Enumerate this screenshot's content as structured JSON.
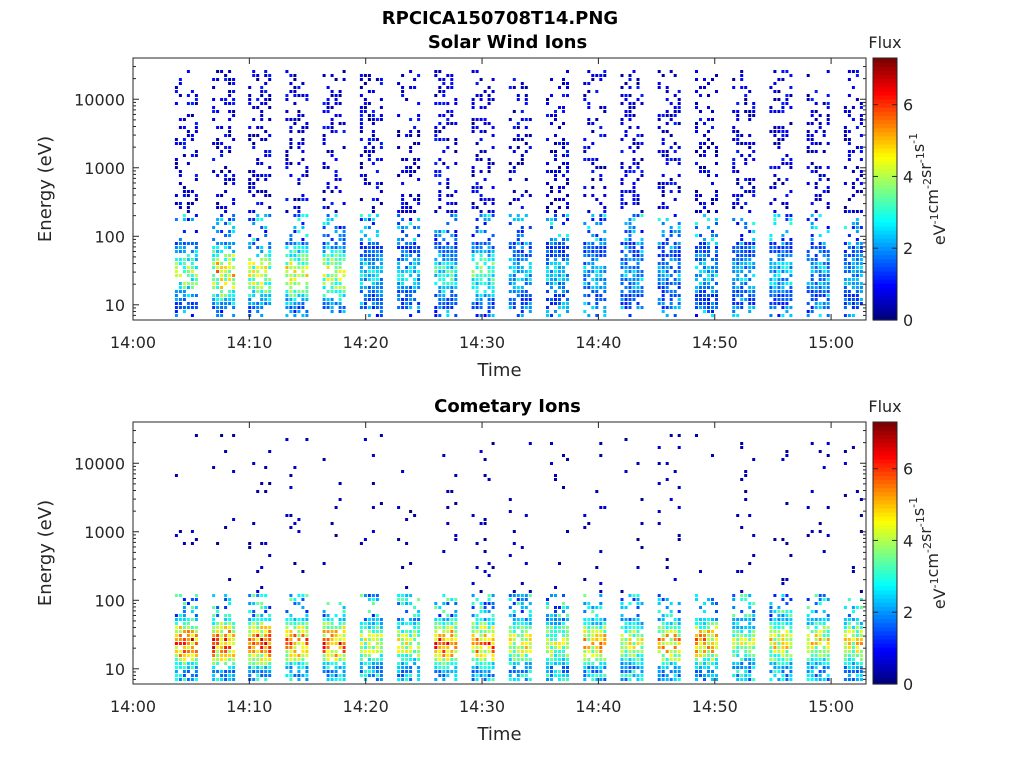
{
  "figure": {
    "title": "RPCICA150708T14.PNG"
  },
  "colormap": [
    "#00007f",
    "#0000ff",
    "#007fff",
    "#00ffff",
    "#7fff7f",
    "#ffff00",
    "#ff7f00",
    "#ff0000",
    "#7f0000"
  ],
  "chart_data": [
    {
      "type": "heatmap",
      "title": "Solar Wind Ions",
      "xlabel": "Time",
      "ylabel": "Energy (eV)",
      "x_ticks": [
        "14:00",
        "14:10",
        "14:20",
        "14:30",
        "14:40",
        "14:50",
        "15:00"
      ],
      "y_ticks": [
        "10",
        "100",
        "1000",
        "10000"
      ],
      "y_scale": "log",
      "ylim": [
        6,
        40000
      ],
      "xlim": [
        "14:00",
        "15:03"
      ],
      "colorbar": {
        "label": "Flux",
        "units": "eV-1cm-2sr-1s-1",
        "ticks": [
          "0",
          "2",
          "4",
          "6"
        ],
        "range": [
          0,
          7.3
        ]
      },
      "sweeps_start_min": [
        3.6,
        6.8,
        9.9,
        13.1,
        16.3,
        19.5,
        22.7,
        25.9,
        29.1,
        32.3,
        35.5,
        38.7,
        41.9,
        45.1,
        48.3,
        51.5,
        54.7,
        57.9,
        61.1
      ],
      "sweep_peak_energy_ev": 30,
      "sweep_peak_flux": [
        4.5,
        6.0,
        5.2,
        5.5,
        5.0,
        3.0,
        3.0,
        3.6,
        4.2,
        3.0,
        3.0,
        2.8,
        2.8,
        2.6,
        3.0,
        2.8,
        3.0,
        2.8,
        2.8
      ]
    },
    {
      "type": "heatmap",
      "title": "Cometary Ions",
      "xlabel": "Time",
      "ylabel": "Energy (eV)",
      "x_ticks": [
        "14:00",
        "14:10",
        "14:20",
        "14:30",
        "14:40",
        "14:50",
        "15:00"
      ],
      "y_ticks": [
        "10",
        "100",
        "1000",
        "10000"
      ],
      "y_scale": "log",
      "ylim": [
        6,
        40000
      ],
      "xlim": [
        "14:00",
        "15:03"
      ],
      "colorbar": {
        "label": "Flux",
        "units": "eV-1cm-2sr-1s-1",
        "ticks": [
          "0",
          "2",
          "4",
          "6"
        ],
        "range": [
          0,
          7.3
        ]
      },
      "sweeps_start_min": [
        3.6,
        6.8,
        9.9,
        13.1,
        16.3,
        19.5,
        22.7,
        25.9,
        29.1,
        32.3,
        35.5,
        38.7,
        41.9,
        45.1,
        48.3,
        51.5,
        54.7,
        57.9,
        61.1
      ],
      "sweep_peak_energy_ev": 25,
      "sweep_peak_flux": [
        7.0,
        7.0,
        7.0,
        6.5,
        6.8,
        5.0,
        5.2,
        6.8,
        6.5,
        5.5,
        5.0,
        5.8,
        5.2,
        6.0,
        6.2,
        4.8,
        5.5,
        5.5,
        5.5
      ]
    }
  ]
}
